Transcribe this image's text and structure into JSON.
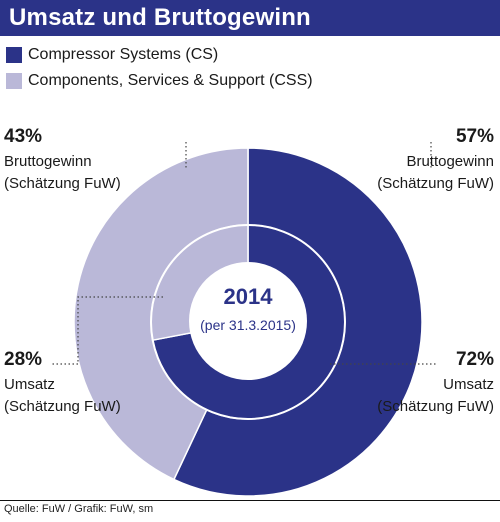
{
  "colors": {
    "brand": "#2b3388",
    "cs": "#2b3388",
    "css": "#bab8d8",
    "ring_edge": "#ffffff",
    "center_text": "#2b3388"
  },
  "chart_data": {
    "type": "pie",
    "variant": "nested-donut",
    "title": "Umsatz und Bruttogewinn",
    "series_names": [
      "Compressor Systems (CS)",
      "Components, Services & Support (CSS)"
    ],
    "center_label": "2014",
    "center_sublabel": "(per 31.3.2015)",
    "rings": [
      {
        "name": "Bruttogewinn",
        "position": "outer",
        "values": [
          57,
          43
        ],
        "label_cs_pct": "57%",
        "label_cs_text": "Bruttogewinn",
        "label_cs_note": "(Schätzung FuW)",
        "label_css_pct": "43%",
        "label_css_text": "Bruttogewinn",
        "label_css_note": "(Schätzung FuW)"
      },
      {
        "name": "Umsatz",
        "position": "inner",
        "values": [
          72,
          28
        ],
        "label_cs_pct": "72%",
        "label_cs_text": "Umsatz",
        "label_cs_note": "(Schätzung FuW)",
        "label_css_pct": "28%",
        "label_css_text": "Umsatz",
        "label_css_note": "(Schätzung FuW)"
      }
    ]
  },
  "source": "Quelle: FuW / Grafik: FuW, sm"
}
